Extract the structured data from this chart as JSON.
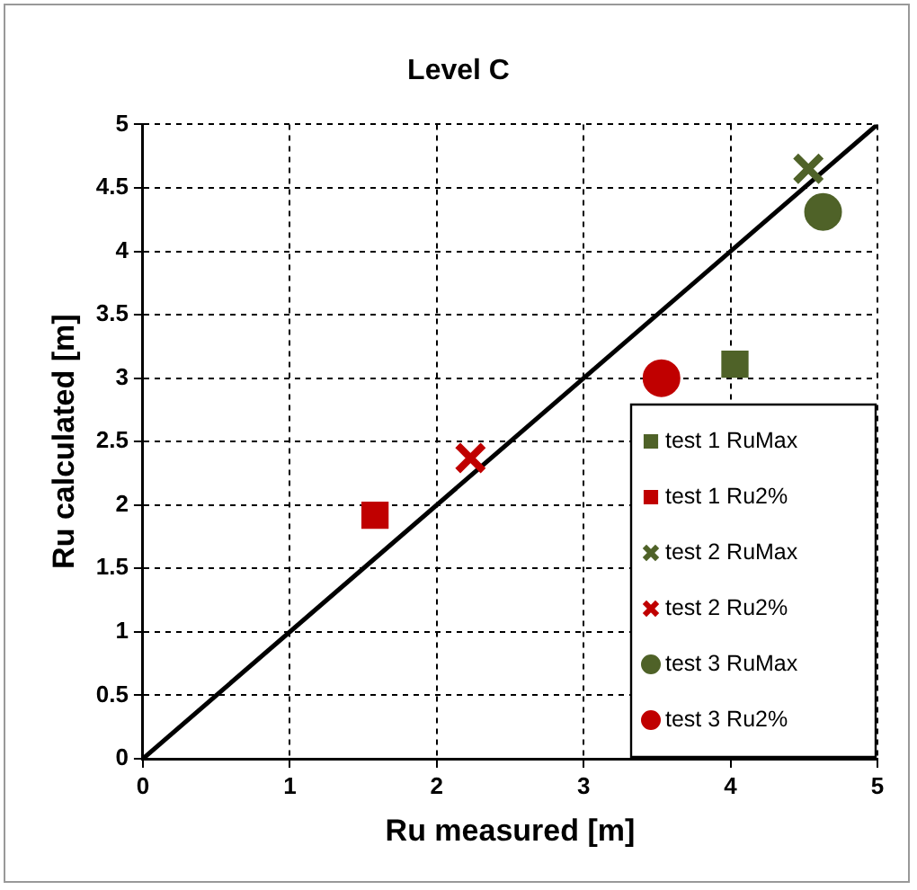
{
  "chart_data": {
    "type": "scatter",
    "title": "Level C",
    "xlabel": "Ru measured [m]",
    "ylabel": "Ru calculated [m]",
    "xlim": [
      0,
      5
    ],
    "ylim": [
      0,
      5
    ],
    "xticks": [
      0,
      1,
      2,
      3,
      4,
      5
    ],
    "yticks": [
      0,
      0.5,
      1,
      1.5,
      2,
      2.5,
      3,
      3.5,
      4,
      4.5,
      5
    ],
    "grid": true,
    "legend": "bottom right",
    "series": [
      {
        "type": "line",
        "color": "#000000",
        "x": [
          0,
          5
        ],
        "values": [
          0,
          5
        ],
        "marker": "none",
        "line_style": "solid"
      },
      {
        "name": "test 1 RuMax",
        "color": "#4f6228",
        "marker": "square",
        "x": [
          4.03
        ],
        "values": [
          3.11
        ]
      },
      {
        "name": "test 1 Ru2%",
        "color": "#c00000",
        "marker": "square",
        "x": [
          1.58
        ],
        "values": [
          1.92
        ]
      },
      {
        "name": "test 2 RuMax",
        "color": "#4f6228",
        "marker": "cross",
        "x": [
          4.53
        ],
        "values": [
          4.65
        ]
      },
      {
        "name": "test 2 Ru2%",
        "color": "#c00000",
        "marker": "cross",
        "x": [
          2.23
        ],
        "values": [
          2.37
        ]
      },
      {
        "name": "test 3 RuMax",
        "color": "#4f6228",
        "marker": "circle",
        "x": [
          4.63
        ],
        "values": [
          4.31
        ]
      },
      {
        "name": "test 3 Ru2%",
        "color": "#c00000",
        "marker": "circle",
        "x": [
          3.53
        ],
        "values": [
          3.0
        ]
      }
    ]
  }
}
